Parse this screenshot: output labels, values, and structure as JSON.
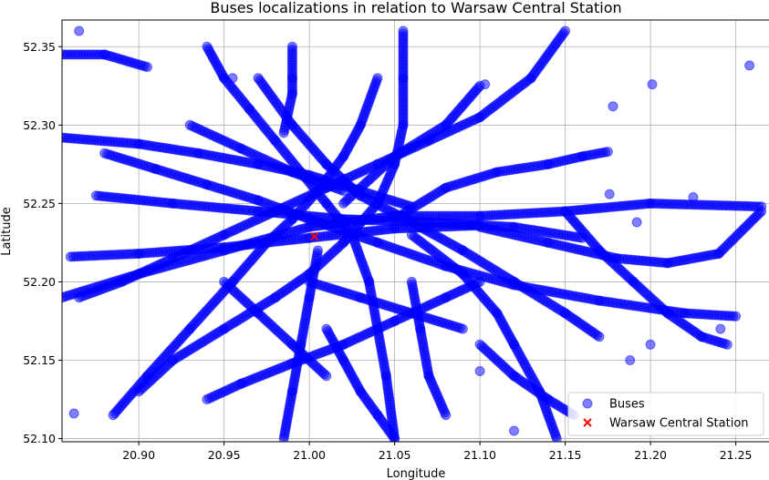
{
  "chart_data": {
    "type": "scatter",
    "title": "Buses localizations in relation to Warsaw Central Station",
    "xlabel": "Longitude",
    "ylabel": "Latitude",
    "xlim": [
      20.855,
      21.27
    ],
    "ylim": [
      52.098,
      52.367
    ],
    "grid": true,
    "legend_position": "lower-right",
    "x_ticks": [
      "20.90",
      "20.95",
      "21.00",
      "21.05",
      "21.10",
      "21.15",
      "21.20",
      "21.25"
    ],
    "y_ticks": [
      "52.10",
      "52.15",
      "52.20",
      "52.25",
      "52.30",
      "52.35"
    ],
    "series": [
      {
        "name": "Buses",
        "marker": "circle",
        "color": "#0000ff",
        "alpha": 0.5,
        "tracks": [
          [
            [
              20.855,
              52.345
            ],
            [
              20.88,
              52.345
            ],
            [
              20.905,
              52.337
            ]
          ],
          [
            [
              20.855,
              52.292
            ],
            [
              20.9,
              52.288
            ],
            [
              20.935,
              52.282
            ],
            [
              20.97,
              52.275
            ],
            [
              21.0,
              52.268
            ],
            [
              21.03,
              52.258
            ],
            [
              21.06,
              52.248
            ]
          ],
          [
            [
              20.855,
              52.19
            ],
            [
              20.9,
              52.205
            ],
            [
              20.95,
              52.22
            ],
            [
              21.0,
              52.235
            ],
            [
              21.05,
              52.242
            ],
            [
              21.1,
              52.242
            ],
            [
              21.15,
              52.245
            ],
            [
              21.2,
              52.25
            ],
            [
              21.265,
              52.248
            ]
          ],
          [
            [
              20.86,
              52.216
            ],
            [
              20.9,
              52.218
            ],
            [
              20.95,
              52.222
            ],
            [
              21.0,
              52.228
            ],
            [
              21.05,
              52.234
            ],
            [
              21.1,
              52.236
            ]
          ],
          [
            [
              20.875,
              52.255
            ],
            [
              20.92,
              52.25
            ],
            [
              20.97,
              52.245
            ],
            [
              21.02,
              52.24
            ],
            [
              21.07,
              52.238
            ],
            [
              21.12,
              52.235
            ],
            [
              21.16,
              52.228
            ]
          ],
          [
            [
              20.88,
              52.282
            ],
            [
              20.91,
              52.272
            ],
            [
              20.94,
              52.262
            ],
            [
              20.97,
              52.252
            ],
            [
              21.0,
              52.24
            ],
            [
              21.04,
              52.225
            ],
            [
              21.08,
              52.21
            ],
            [
              21.12,
              52.198
            ],
            [
              21.17,
              52.188
            ],
            [
              21.22,
              52.18
            ],
            [
              21.25,
              52.178
            ]
          ],
          [
            [
              20.865,
              52.19
            ],
            [
              20.89,
              52.2
            ],
            [
              20.92,
              52.215
            ],
            [
              20.95,
              52.23
            ],
            [
              20.98,
              52.245
            ],
            [
              21.01,
              52.26
            ],
            [
              21.04,
              52.275
            ],
            [
              21.07,
              52.29
            ],
            [
              21.1,
              52.305
            ],
            [
              21.13,
              52.33
            ],
            [
              21.15,
              52.36
            ]
          ],
          [
            [
              20.94,
              52.35
            ],
            [
              20.95,
              52.33
            ],
            [
              20.965,
              52.31
            ],
            [
              20.98,
              52.29
            ],
            [
              20.995,
              52.27
            ],
            [
              21.01,
              52.25
            ],
            [
              21.025,
              52.23
            ],
            [
              21.035,
              52.2
            ],
            [
              21.04,
              52.17
            ],
            [
              21.045,
              52.14
            ],
            [
              21.05,
              52.1
            ]
          ],
          [
            [
              20.97,
              52.33
            ],
            [
              20.99,
              52.3
            ],
            [
              21.01,
              52.275
            ],
            [
              21.03,
              52.255
            ],
            [
              21.06,
              52.238
            ],
            [
              21.09,
              52.22
            ],
            [
              21.12,
              52.2
            ],
            [
              21.15,
              52.18
            ],
            [
              21.17,
              52.165
            ]
          ],
          [
            [
              20.9,
              52.13
            ],
            [
              20.92,
              52.15
            ],
            [
              20.95,
              52.17
            ],
            [
              20.98,
              52.19
            ],
            [
              21.0,
              52.205
            ],
            [
              21.02,
              52.225
            ],
            [
              21.04,
              52.25
            ],
            [
              21.05,
              52.275
            ],
            [
              21.055,
              52.3
            ],
            [
              21.055,
              52.33
            ],
            [
              21.055,
              52.36
            ]
          ],
          [
            [
              20.885,
              52.115
            ],
            [
              20.905,
              52.14
            ],
            [
              20.93,
              52.17
            ],
            [
              20.955,
              52.2
            ],
            [
              20.975,
              52.225
            ],
            [
              20.99,
              52.24
            ],
            [
              21.005,
              52.258
            ],
            [
              21.02,
              52.28
            ],
            [
              21.03,
              52.3
            ],
            [
              21.04,
              52.33
            ]
          ],
          [
            [
              21.01,
              52.17
            ],
            [
              21.02,
              52.15
            ],
            [
              21.03,
              52.13
            ],
            [
              21.04,
              52.115
            ],
            [
              21.05,
              52.1
            ]
          ],
          [
            [
              20.94,
              52.125
            ],
            [
              20.96,
              52.135
            ],
            [
              20.99,
              52.148
            ],
            [
              21.02,
              52.16
            ],
            [
              21.05,
              52.175
            ],
            [
              21.08,
              52.19
            ],
            [
              21.1,
              52.2
            ]
          ],
          [
            [
              20.985,
              52.1
            ],
            [
              20.99,
              52.13
            ],
            [
              20.995,
              52.16
            ],
            [
              21.0,
              52.19
            ],
            [
              21.005,
              52.22
            ]
          ],
          [
            [
              21.05,
              52.24
            ],
            [
              21.08,
              52.26
            ],
            [
              21.11,
              52.27
            ],
            [
              21.14,
              52.275
            ],
            [
              21.16,
              52.28
            ],
            [
              21.175,
              52.283
            ]
          ],
          [
            [
              21.06,
              52.23
            ],
            [
              21.09,
              52.205
            ],
            [
              21.11,
              52.18
            ],
            [
              21.12,
              52.16
            ],
            [
              21.135,
              52.13
            ],
            [
              21.145,
              52.1
            ]
          ],
          [
            [
              21.02,
              52.25
            ],
            [
              21.05,
              52.28
            ],
            [
              21.08,
              52.3
            ],
            [
              21.1,
              52.325
            ]
          ],
          [
            [
              20.93,
              52.3
            ],
            [
              20.96,
              52.285
            ],
            [
              20.99,
              52.27
            ],
            [
              21.02,
              52.258
            ]
          ],
          [
            [
              21.1,
              52.235
            ],
            [
              21.14,
              52.225
            ],
            [
              21.18,
              52.215
            ],
            [
              21.21,
              52.212
            ],
            [
              21.24,
              52.218
            ],
            [
              21.265,
              52.245
            ]
          ],
          [
            [
              21.15,
              52.245
            ],
            [
              21.17,
              52.22
            ],
            [
              21.19,
              52.2
            ],
            [
              21.21,
              52.18
            ],
            [
              21.23,
              52.165
            ],
            [
              21.245,
              52.16
            ]
          ],
          [
            [
              20.95,
              52.2
            ],
            [
              20.97,
              52.18
            ],
            [
              20.99,
              52.16
            ],
            [
              21.01,
              52.14
            ]
          ],
          [
            [
              21.06,
              52.2
            ],
            [
              21.065,
              52.17
            ],
            [
              21.07,
              52.14
            ],
            [
              21.08,
              52.115
            ]
          ],
          [
            [
              21.0,
              52.2
            ],
            [
              21.03,
              52.19
            ],
            [
              21.06,
              52.18
            ],
            [
              21.09,
              52.17
            ]
          ],
          [
            [
              20.985,
              52.295
            ],
            [
              20.99,
              52.32
            ],
            [
              20.99,
              52.35
            ]
          ],
          [
            [
              21.1,
              52.16
            ],
            [
              21.12,
              52.14
            ],
            [
              21.14,
              52.125
            ],
            [
              21.155,
              52.115
            ]
          ]
        ],
        "isolated_points": [
          [
            20.865,
            52.36
          ],
          [
            20.862,
            52.116
          ],
          [
            21.258,
            52.338
          ],
          [
            21.201,
            52.326
          ],
          [
            21.178,
            52.312
          ],
          [
            21.176,
            52.256
          ],
          [
            21.192,
            52.238
          ],
          [
            21.188,
            52.15
          ],
          [
            21.103,
            52.326
          ],
          [
            21.241,
            52.17
          ],
          [
            21.2,
            52.16
          ],
          [
            21.225,
            52.254
          ],
          [
            20.99,
            52.33
          ],
          [
            20.955,
            52.33
          ],
          [
            21.12,
            52.105
          ],
          [
            21.1,
            52.143
          ]
        ]
      },
      {
        "name": "Warsaw Central Station",
        "marker": "x",
        "color": "#ff0000",
        "points": [
          [
            21.003,
            52.229
          ]
        ]
      }
    ]
  }
}
